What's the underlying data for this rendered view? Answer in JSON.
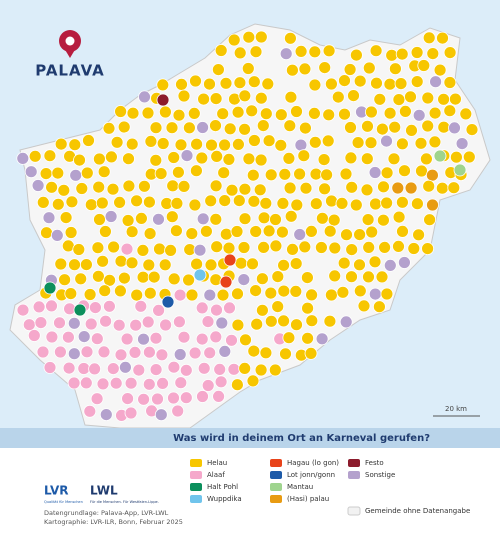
{
  "logo": {
    "text": "PALAVA"
  },
  "title": "Was wird in deinem Ort an Karneval gerufen?",
  "scale": {
    "label": "20 km"
  },
  "legend": {
    "items": [
      {
        "label": "Helau",
        "color": "#f7c600"
      },
      {
        "label": "Alaaf",
        "color": "#f5a8cb"
      },
      {
        "label": "Halt Pohl",
        "color": "#0b8f5c"
      },
      {
        "label": "Wuppdika",
        "color": "#70c4ec"
      },
      {
        "label": "Hagau (lo gon)",
        "color": "#e8431a"
      },
      {
        "label": "Lot jonn/gonn",
        "color": "#1d5aa8"
      },
      {
        "label": "Mantau",
        "color": "#9fd48e"
      },
      {
        "label": "(Hasi) palau",
        "color": "#e89b12"
      },
      {
        "label": "Festo",
        "color": "#8c1b2c"
      },
      {
        "label": "Sonstige",
        "color": "#b4a1cd"
      },
      {
        "label": "Gemeinde ohne Datenangabe",
        "color": "#f2f2f2"
      }
    ]
  },
  "logos": {
    "lvr": "LVR",
    "lvr_sub": "Qualität für Menschen",
    "lwl": "LWL",
    "lwl_sub": "Für die Menschen. Für Westfalen-Lippe."
  },
  "credits": [
    "Datengrundlage: Palava-App, LVR-LWL",
    "Kartographie: LVR-ILR, Bonn, Februar 2025"
  ]
}
